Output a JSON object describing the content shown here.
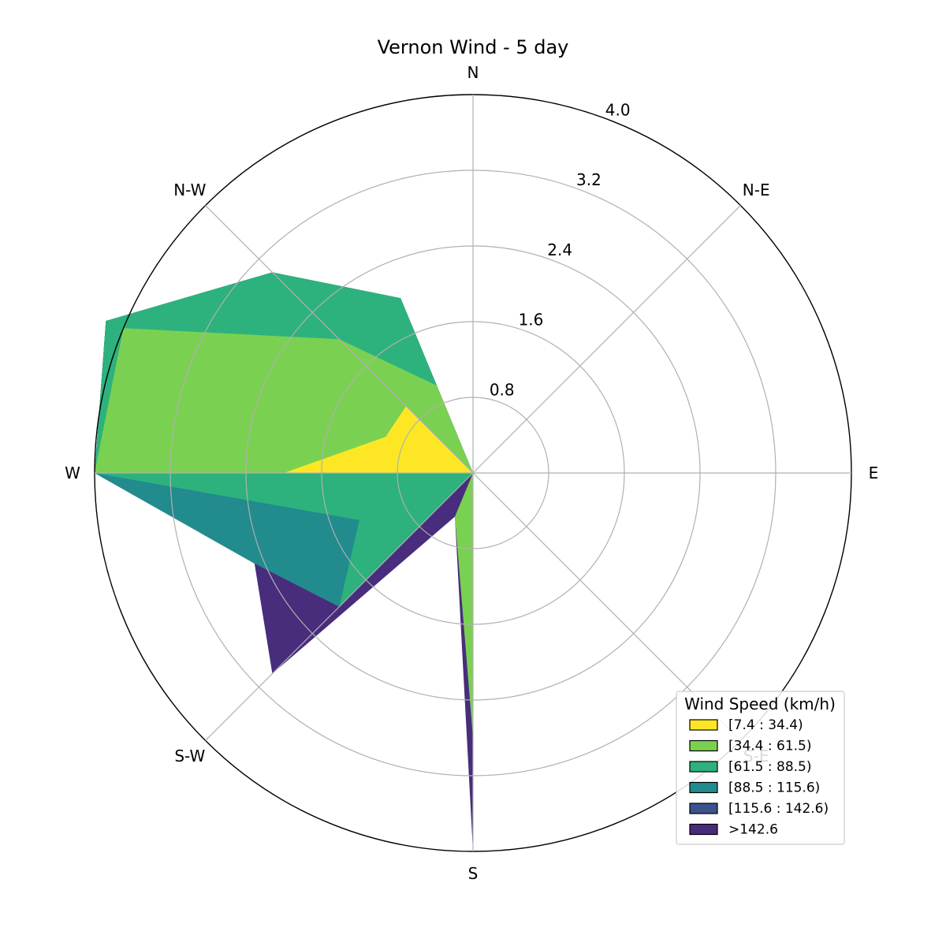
{
  "chart_data": {
    "type": "area",
    "subtype": "polar-windrose",
    "title": "Vernon Wind - 5 day",
    "directions": [
      "N",
      "N-E",
      "E",
      "S-E",
      "S",
      "S-W",
      "W",
      "N-W"
    ],
    "rticks": [
      "0.8",
      "1.6",
      "2.4",
      "3.2",
      "4.0"
    ],
    "rlim": [
      0,
      4.0
    ],
    "grid": true,
    "legend": {
      "title": "Wind Speed (km/h)",
      "placement": "lower-right"
    },
    "sector_angles_deg": [
      0,
      22.5,
      45,
      67.5,
      90,
      112.5,
      135,
      157.5,
      180,
      202.5,
      225,
      247.5,
      270,
      292.5,
      315,
      337.5
    ],
    "series": [
      {
        "name": "[7.4 : 34.4)",
        "color": "#fde725",
        "values": [
          0,
          0,
          0,
          0,
          0,
          0,
          0,
          0,
          0,
          0,
          0,
          0,
          2.0,
          1.0,
          1.0,
          0
        ]
      },
      {
        "name": "[34.4 : 61.5)",
        "color": "#7ad151",
        "values": [
          0,
          0,
          0,
          0,
          0,
          0,
          0.01,
          0,
          2.8,
          0.5,
          0,
          0,
          4.0,
          4.0,
          2.0,
          1.0
        ]
      },
      {
        "name": "[61.5 : 88.5)",
        "color": "#2db27d",
        "values": [
          0,
          0,
          0,
          0,
          0,
          0,
          0,
          0,
          4.0,
          0,
          2.0,
          1.3,
          4.0,
          4.2,
          3.0,
          2.0
        ]
      },
      {
        "name": "[88.5 : 115.6)",
        "color": "#228b8d",
        "values": [
          0,
          0,
          0,
          0,
          0,
          0,
          0,
          0,
          4.0,
          0,
          2.0,
          2.5,
          4.0,
          4.2,
          3.0,
          2.0
        ]
      },
      {
        "name": "[115.6 : 142.6)",
        "color": "#3b528b",
        "values": [
          0,
          0,
          0,
          0,
          0,
          0,
          0,
          0,
          4.0,
          0,
          2.0,
          2.5,
          4.0,
          4.2,
          3.0,
          2.0
        ]
      },
      {
        "name": ">142.6",
        "color": "#472d7b",
        "values": [
          0,
          0,
          0,
          0,
          0,
          0,
          0,
          0,
          4.0,
          0.5,
          3.0,
          2.5,
          4.0,
          4.2,
          3.0,
          2.0
        ]
      }
    ]
  }
}
